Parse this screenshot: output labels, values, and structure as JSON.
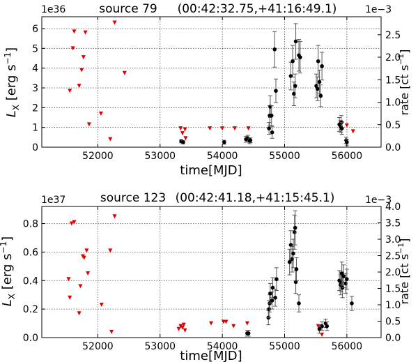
{
  "chart_data": [
    {
      "type": "scatter",
      "title_source": "source 79",
      "title_coords": "(00:42:32.75,+41:16:49.1)",
      "xlabel": "time[MJD]",
      "ylabel": "L_X [erg s^-1]",
      "ylabel_parts": {
        "main": "L",
        "sub": "X",
        "unit_pre": "[erg s",
        "sup": "−1",
        "unit_post": "]"
      },
      "y2label_parts": {
        "pre": "rate [ct s",
        "sup": "−1",
        "post": "]"
      },
      "y_exponent": "1e36",
      "y2_exponent": "1e−3",
      "xlim": [
        51100,
        56550
      ],
      "ylim": [
        0,
        6.6
      ],
      "y2lim": [
        0,
        2.9
      ],
      "xticks": [
        52000,
        53000,
        54000,
        55000,
        56000
      ],
      "yticks": [
        0,
        1,
        2,
        3,
        4,
        5,
        6
      ],
      "y2ticks": [
        "0.0",
        "0.5",
        "1.0",
        "1.5",
        "2.0",
        "2.5"
      ],
      "y2tick_values": [
        0,
        0.5,
        1.0,
        1.5,
        2.0,
        2.5
      ],
      "grid": true,
      "upper_limits_color": "#dd0000",
      "detections_color": "#000000",
      "upper_limits": [
        [
          51550,
          2.85
        ],
        [
          51600,
          5.0
        ],
        [
          51620,
          5.85
        ],
        [
          51700,
          3.1
        ],
        [
          51740,
          3.9
        ],
        [
          51770,
          4.55
        ],
        [
          51800,
          5.8
        ],
        [
          51860,
          1.15
        ],
        [
          52050,
          1.7
        ],
        [
          52200,
          0.4
        ],
        [
          52270,
          6.3
        ],
        [
          52430,
          3.75
        ],
        [
          53330,
          0.95
        ],
        [
          53360,
          0.7
        ],
        [
          53400,
          0.9
        ],
        [
          53410,
          0.45
        ],
        [
          53800,
          0.95
        ],
        [
          54000,
          0.95
        ],
        [
          54200,
          0.95
        ],
        [
          54420,
          0.95
        ],
        [
          55920,
          1.2
        ],
        [
          56000,
          1.1
        ],
        [
          56100,
          0.8
        ]
      ],
      "detections": [
        {
          "x": 53340,
          "y": 0.3,
          "err": 0.08
        },
        {
          "x": 53370,
          "y": 0.25,
          "err": 0.08
        },
        {
          "x": 54030,
          "y": 0.25,
          "err": 0.1
        },
        {
          "x": 54380,
          "y": 0.4,
          "err": 0.15
        },
        {
          "x": 54410,
          "y": 0.45,
          "err": 0.15
        },
        {
          "x": 54440,
          "y": 0.3,
          "err": 0.12
        },
        {
          "x": 54450,
          "y": 0.35,
          "err": 0.12
        },
        {
          "x": 54750,
          "y": 0.95,
          "err": 0.3
        },
        {
          "x": 54760,
          "y": 1.6,
          "err": 0.5
        },
        {
          "x": 54770,
          "y": 2.05,
          "err": 0.55
        },
        {
          "x": 54790,
          "y": 1.6,
          "err": 0.5
        },
        {
          "x": 54800,
          "y": 0.75,
          "err": 0.3
        },
        {
          "x": 54840,
          "y": 4.95,
          "err": 0.9
        },
        {
          "x": 54860,
          "y": 2.85,
          "err": 0.6
        },
        {
          "x": 55100,
          "y": 3.6,
          "err": 0.7
        },
        {
          "x": 55130,
          "y": 4.35,
          "err": 0.8
        },
        {
          "x": 55150,
          "y": 2.7,
          "err": 0.6
        },
        {
          "x": 55170,
          "y": 3.1,
          "err": 0.6
        },
        {
          "x": 55180,
          "y": 5.35,
          "err": 0.9
        },
        {
          "x": 55230,
          "y": 4.65,
          "err": 0.8
        },
        {
          "x": 55250,
          "y": 4.55,
          "err": 0.8
        },
        {
          "x": 55510,
          "y": 3.1,
          "err": 0.6
        },
        {
          "x": 55530,
          "y": 2.95,
          "err": 0.6
        },
        {
          "x": 55540,
          "y": 4.35,
          "err": 0.8
        },
        {
          "x": 55560,
          "y": 3.3,
          "err": 0.6
        },
        {
          "x": 55580,
          "y": 2.6,
          "err": 0.55
        },
        {
          "x": 55600,
          "y": 4.1,
          "err": 0.7
        },
        {
          "x": 55880,
          "y": 1.15,
          "err": 0.35
        },
        {
          "x": 55900,
          "y": 1.05,
          "err": 0.3
        },
        {
          "x": 55910,
          "y": 1.25,
          "err": 0.35
        },
        {
          "x": 55920,
          "y": 0.95,
          "err": 0.3
        },
        {
          "x": 55990,
          "y": 0.35,
          "err": 0.15
        },
        {
          "x": 56000,
          "y": 0.25,
          "err": 0.15
        }
      ]
    },
    {
      "type": "scatter",
      "title_source": "source 123",
      "title_coords": "(00:42:41.18,+41:15:45.1)",
      "xlabel": "time[MJD]",
      "ylabel": "L_X [erg s^-1]",
      "ylabel_parts": {
        "main": "L",
        "sub": "X",
        "unit_pre": "[erg s",
        "sup": "−1",
        "unit_post": "]"
      },
      "y2label_parts": {
        "pre": "rate [ct s",
        "sup": "−1",
        "post": "]"
      },
      "y_exponent": "1e37",
      "y2_exponent": "1e−3",
      "xlim": [
        51100,
        56550
      ],
      "ylim": [
        0,
        0.92
      ],
      "y2lim": [
        0,
        4.0
      ],
      "xticks": [
        52000,
        53000,
        54000,
        55000,
        56000
      ],
      "yticks": [
        0.0,
        0.2,
        0.4,
        0.6,
        0.8
      ],
      "ytick_labels": [
        "0.0",
        "0.2",
        "0.4",
        "0.6",
        "0.8"
      ],
      "y2ticks": [
        "0.0",
        "0.5",
        "1.0",
        "1.5",
        "2.0",
        "2.5",
        "3.0",
        "3.5",
        "4.0"
      ],
      "y2tick_values": [
        0,
        0.5,
        1.0,
        1.5,
        2.0,
        2.5,
        3.0,
        3.5,
        4.0
      ],
      "grid": true,
      "upper_limits_color": "#dd0000",
      "detections_color": "#000000",
      "upper_limits": [
        [
          51530,
          0.41
        ],
        [
          51550,
          0.28
        ],
        [
          51580,
          0.8
        ],
        [
          51620,
          0.81
        ],
        [
          51700,
          0.17
        ],
        [
          51720,
          0.36
        ],
        [
          51760,
          0.57
        ],
        [
          51780,
          0.56
        ],
        [
          51820,
          0.61
        ],
        [
          51840,
          0.45
        ],
        [
          52060,
          0.23
        ],
        [
          52200,
          0.61
        ],
        [
          52220,
          0.04
        ],
        [
          52270,
          0.85
        ],
        [
          53300,
          0.06
        ],
        [
          53330,
          0.08
        ],
        [
          53360,
          0.07
        ],
        [
          53380,
          0.09
        ],
        [
          53400,
          0.05
        ],
        [
          53820,
          0.1
        ],
        [
          54020,
          0.11
        ],
        [
          54060,
          0.11
        ],
        [
          54180,
          0.08
        ],
        [
          54400,
          0.1
        ],
        [
          55540,
          0.08
        ],
        [
          55560,
          0.05
        ],
        [
          55600,
          0.02
        ]
      ],
      "detections": [
        {
          "x": 54400,
          "y": 0.03,
          "err": 0.02
        },
        {
          "x": 54420,
          "y": 0.03,
          "err": 0.02
        },
        {
          "x": 54740,
          "y": 0.14,
          "err": 0.05
        },
        {
          "x": 54750,
          "y": 0.2,
          "err": 0.06
        },
        {
          "x": 54760,
          "y": 0.24,
          "err": 0.06
        },
        {
          "x": 54770,
          "y": 0.31,
          "err": 0.07
        },
        {
          "x": 54800,
          "y": 0.26,
          "err": 0.06
        },
        {
          "x": 54810,
          "y": 0.35,
          "err": 0.07
        },
        {
          "x": 54850,
          "y": 0.28,
          "err": 0.06
        },
        {
          "x": 54870,
          "y": 0.41,
          "err": 0.08
        },
        {
          "x": 55080,
          "y": 0.53,
          "err": 0.09
        },
        {
          "x": 55100,
          "y": 0.65,
          "err": 0.1
        },
        {
          "x": 55120,
          "y": 0.55,
          "err": 0.09
        },
        {
          "x": 55140,
          "y": 0.59,
          "err": 0.1
        },
        {
          "x": 55160,
          "y": 0.74,
          "err": 0.12
        },
        {
          "x": 55170,
          "y": 0.77,
          "err": 0.12
        },
        {
          "x": 55180,
          "y": 0.39,
          "err": 0.08
        },
        {
          "x": 55190,
          "y": 0.48,
          "err": 0.08
        },
        {
          "x": 55230,
          "y": 0.24,
          "err": 0.06
        },
        {
          "x": 55560,
          "y": 0.06,
          "err": 0.03
        },
        {
          "x": 55600,
          "y": 0.08,
          "err": 0.03
        },
        {
          "x": 55660,
          "y": 0.1,
          "err": 0.03
        },
        {
          "x": 55680,
          "y": 0.08,
          "err": 0.03
        },
        {
          "x": 55880,
          "y": 0.4,
          "err": 0.07
        },
        {
          "x": 55900,
          "y": 0.37,
          "err": 0.07
        },
        {
          "x": 55910,
          "y": 0.39,
          "err": 0.07
        },
        {
          "x": 55920,
          "y": 0.45,
          "err": 0.08
        },
        {
          "x": 55930,
          "y": 0.35,
          "err": 0.07
        },
        {
          "x": 55950,
          "y": 0.43,
          "err": 0.08
        },
        {
          "x": 55980,
          "y": 0.38,
          "err": 0.07
        },
        {
          "x": 56000,
          "y": 0.41,
          "err": 0.07
        },
        {
          "x": 56080,
          "y": 0.24,
          "err": 0.05
        }
      ]
    }
  ]
}
